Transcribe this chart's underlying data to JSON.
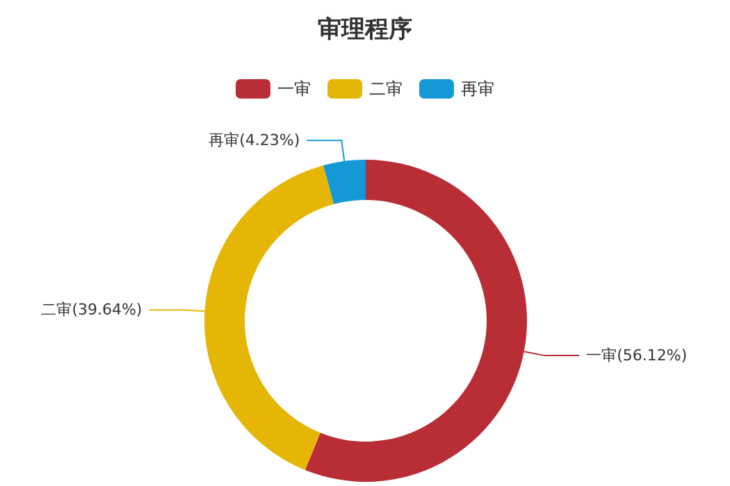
{
  "chart_data": {
    "type": "donut",
    "title": "审理程序",
    "categories": [
      "一审",
      "二审",
      "再审"
    ],
    "values": [
      56.12,
      39.64,
      4.23
    ],
    "colors": [
      "#b92d35",
      "#e5b606",
      "#1598d6"
    ],
    "value_labels": [
      "一审(56.12%)",
      "二审(39.64%)",
      "再审(4.23%)"
    ],
    "legend": "top"
  }
}
